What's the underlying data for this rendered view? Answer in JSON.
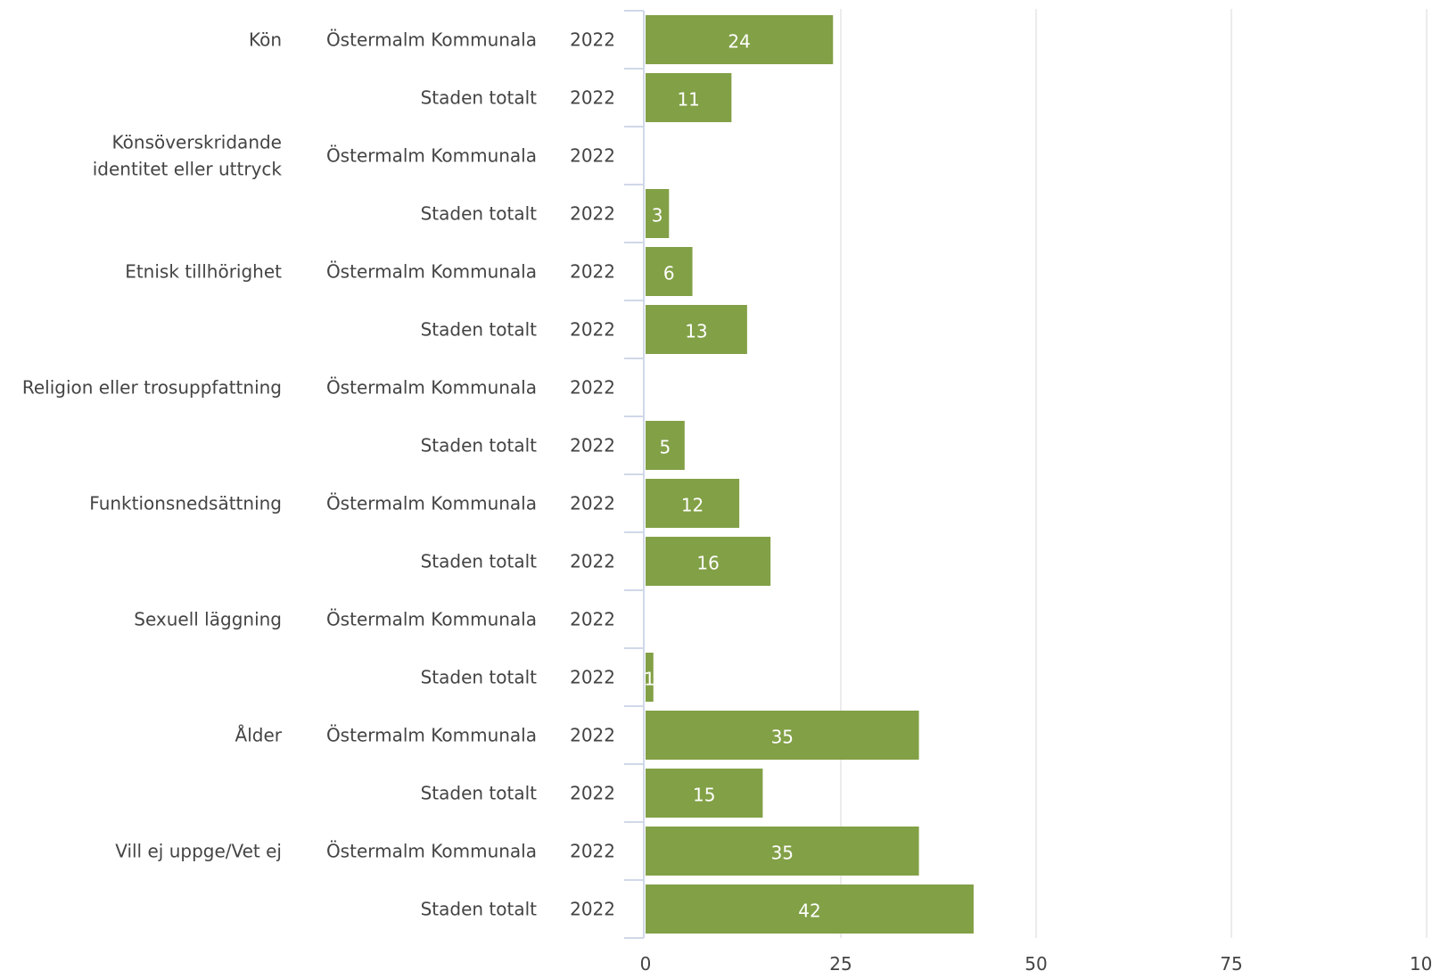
{
  "chart_data": {
    "type": "bar",
    "orientation": "horizontal",
    "title": "",
    "xlabel": "",
    "ylabel": "",
    "xlim": [
      0,
      100
    ],
    "x_ticks": [
      "0",
      "25",
      "50",
      "75",
      "100"
    ],
    "grid": "vertical",
    "bar_color": "#82a046",
    "groups": [
      {
        "category": [
          "Kön"
        ],
        "rows": [
          {
            "unit": "Östermalm Kommunala",
            "year": "2022",
            "value": 24,
            "label": "24"
          },
          {
            "unit": "Staden totalt",
            "year": "2022",
            "value": 11,
            "label": "11"
          }
        ]
      },
      {
        "category": [
          "Könsöverskridande",
          "identitet eller uttryck"
        ],
        "rows": [
          {
            "unit": "Östermalm Kommunala",
            "year": "2022",
            "value": null,
            "label": ""
          },
          {
            "unit": "Staden totalt",
            "year": "2022",
            "value": 3,
            "label": "3"
          }
        ]
      },
      {
        "category": [
          "Etnisk tillhörighet"
        ],
        "rows": [
          {
            "unit": "Östermalm Kommunala",
            "year": "2022",
            "value": 6,
            "label": "6"
          },
          {
            "unit": "Staden totalt",
            "year": "2022",
            "value": 13,
            "label": "13"
          }
        ]
      },
      {
        "category": [
          "Religion eller trosuppfattning"
        ],
        "rows": [
          {
            "unit": "Östermalm Kommunala",
            "year": "2022",
            "value": null,
            "label": ""
          },
          {
            "unit": "Staden totalt",
            "year": "2022",
            "value": 5,
            "label": "5"
          }
        ]
      },
      {
        "category": [
          "Funktionsnedsättning"
        ],
        "rows": [
          {
            "unit": "Östermalm Kommunala",
            "year": "2022",
            "value": 12,
            "label": "12"
          },
          {
            "unit": "Staden totalt",
            "year": "2022",
            "value": 16,
            "label": "16"
          }
        ]
      },
      {
        "category": [
          "Sexuell läggning"
        ],
        "rows": [
          {
            "unit": "Östermalm Kommunala",
            "year": "2022",
            "value": null,
            "label": ""
          },
          {
            "unit": "Staden totalt",
            "year": "2022",
            "value": 1,
            "label": "1"
          }
        ]
      },
      {
        "category": [
          "Ålder"
        ],
        "rows": [
          {
            "unit": "Östermalm Kommunala",
            "year": "2022",
            "value": 35,
            "label": "35"
          },
          {
            "unit": "Staden totalt",
            "year": "2022",
            "value": 15,
            "label": "15"
          }
        ]
      },
      {
        "category": [
          "Vill ej uppge/Vet ej"
        ],
        "rows": [
          {
            "unit": "Östermalm Kommunala",
            "year": "2022",
            "value": 35,
            "label": "35"
          },
          {
            "unit": "Staden totalt",
            "year": "2022",
            "value": 42,
            "label": "42"
          }
        ]
      }
    ]
  }
}
